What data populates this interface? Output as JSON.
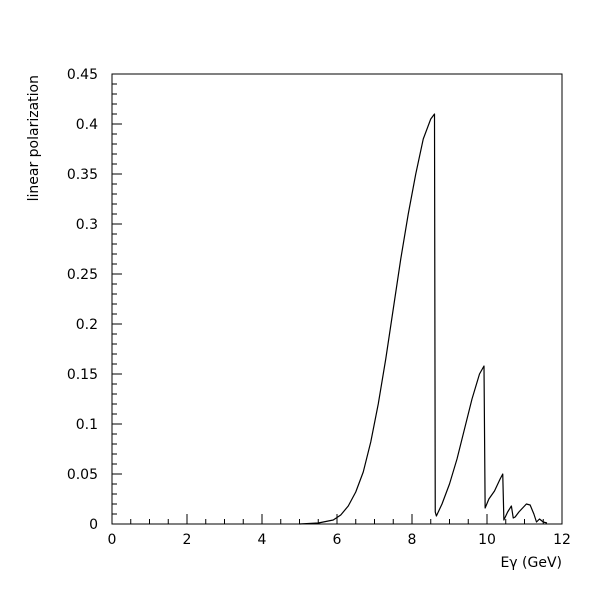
{
  "chart_data": {
    "type": "line",
    "xlabel": "Eγ (GeV)",
    "ylabel": "linear polarization",
    "xlim": [
      0,
      12
    ],
    "ylim": [
      0,
      0.45
    ],
    "x_ticks": [
      "0",
      "2",
      "4",
      "6",
      "8",
      "10",
      "12"
    ],
    "y_ticks": [
      "0",
      "0.05",
      "0.1",
      "0.15",
      "0.2",
      "0.25",
      "0.3",
      "0.35",
      "0.4",
      "0.45"
    ],
    "grid": false,
    "series": [
      {
        "x": [
          5.0,
          5.5,
          5.9,
          6.1,
          6.3,
          6.5,
          6.7,
          6.9,
          7.1,
          7.3,
          7.5,
          7.7,
          7.9,
          8.1,
          8.3,
          8.5,
          8.6,
          8.62,
          8.65,
          8.8,
          9.0,
          9.2,
          9.4,
          9.6,
          9.8,
          9.92,
          9.95,
          10.05,
          10.2,
          10.35,
          10.42,
          10.45,
          10.55,
          10.65,
          10.7,
          10.75,
          10.85,
          10.95,
          11.05,
          11.15,
          11.25,
          11.32,
          11.4,
          11.5,
          11.6
        ],
        "y": [
          0.0,
          0.001,
          0.004,
          0.009,
          0.018,
          0.032,
          0.052,
          0.082,
          0.12,
          0.165,
          0.215,
          0.265,
          0.31,
          0.35,
          0.385,
          0.405,
          0.41,
          0.012,
          0.008,
          0.02,
          0.04,
          0.065,
          0.095,
          0.125,
          0.15,
          0.158,
          0.016,
          0.025,
          0.033,
          0.045,
          0.05,
          0.004,
          0.012,
          0.018,
          0.006,
          0.007,
          0.012,
          0.016,
          0.02,
          0.019,
          0.01,
          0.002,
          0.005,
          0.002,
          0.001
        ]
      }
    ]
  }
}
